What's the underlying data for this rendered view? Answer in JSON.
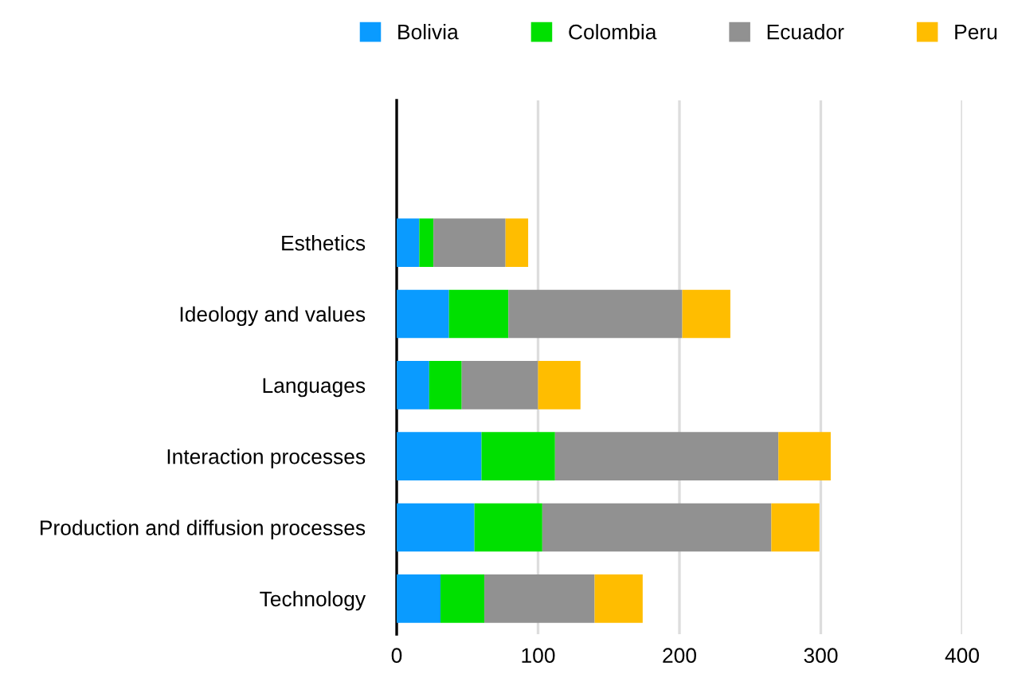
{
  "chart_data": {
    "type": "bar",
    "orientation": "horizontal",
    "stacked": true,
    "categories": [
      "Esthetics",
      "Ideology and values",
      "Languages",
      "Interaction processes",
      "Production and diffusion processes",
      "Technology"
    ],
    "series": [
      {
        "name": "Bolivia",
        "color": "#0a9bff",
        "values": [
          16,
          37,
          23,
          60,
          55,
          31
        ]
      },
      {
        "name": "Colombia",
        "color": "#00e000",
        "values": [
          10,
          42,
          23,
          52,
          48,
          31
        ]
      },
      {
        "name": "Ecuador",
        "color": "#919191",
        "values": [
          51,
          123,
          54,
          158,
          162,
          78
        ]
      },
      {
        "name": "Peru",
        "color": "#ffbd00",
        "values": [
          16,
          34,
          30,
          37,
          34,
          34
        ]
      }
    ],
    "xlim": [
      0,
      400
    ],
    "xticks": [
      0,
      100,
      200,
      300,
      400
    ],
    "grid": "x",
    "legend": "top"
  }
}
